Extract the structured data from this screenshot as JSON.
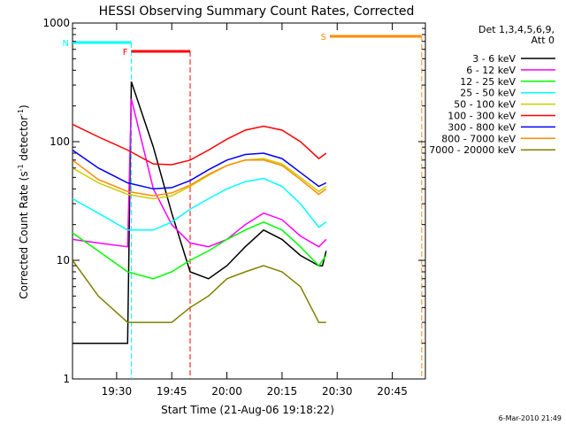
{
  "chart_data": {
    "type": "line",
    "title": "HESSI Observing Summary Count Rates, Corrected",
    "xlabel": "Start Time (21-Aug-06 19:18:22)",
    "ylabel": "Corrected Count Rate (s⁻¹ detector⁻¹)",
    "ylabel_parts": [
      "Corrected Count Rate (s",
      "-1",
      " detector",
      "-1",
      ")"
    ],
    "yscale": "log",
    "ylim": [
      1,
      1000
    ],
    "xlim_minutes": [
      19.3,
      20.9
    ],
    "x_ticks": [
      "19:30",
      "19:45",
      "20:00",
      "20:15",
      "20:30",
      "20:45"
    ],
    "y_ticks": [
      "1",
      "10",
      "100",
      "1000"
    ],
    "legend_title": [
      "Det 1,3,4,5,6,9,",
      "Att 0"
    ],
    "series": [
      {
        "name": "3 - 6 keV",
        "color": "#000000",
        "x": [
          "19:18",
          "19:33",
          "19:34",
          "19:40",
          "19:45",
          "19:50",
          "19:55",
          "20:00",
          "20:05",
          "20:10",
          "20:15",
          "20:20",
          "20:25",
          "20:26",
          "20:27"
        ],
        "y": [
          2.0,
          2.0,
          320,
          90,
          25,
          8,
          7,
          9,
          13,
          18,
          15,
          11,
          9,
          9,
          12
        ]
      },
      {
        "name": "6 - 12 keV",
        "color": "#ff00ff",
        "x": [
          "19:18",
          "19:25",
          "19:33",
          "19:34",
          "19:40",
          "19:45",
          "19:50",
          "19:55",
          "20:00",
          "20:05",
          "20:10",
          "20:15",
          "20:20",
          "20:25",
          "20:27"
        ],
        "y": [
          15,
          14,
          13,
          230,
          40,
          20,
          14,
          13,
          15,
          20,
          25,
          22,
          16,
          13,
          15
        ]
      },
      {
        "name": "12 - 25 keV",
        "color": "#00ff00",
        "x": [
          "19:18",
          "19:25",
          "19:33",
          "19:40",
          "19:45",
          "19:50",
          "19:55",
          "20:00",
          "20:05",
          "20:10",
          "20:15",
          "20:20",
          "20:25",
          "20:27"
        ],
        "y": [
          17,
          12,
          8,
          7,
          8,
          10,
          12,
          15,
          18,
          21,
          18,
          13,
          9,
          11
        ]
      },
      {
        "name": "25 - 50 keV",
        "color": "#00ffff",
        "x": [
          "19:18",
          "19:25",
          "19:33",
          "19:40",
          "19:45",
          "19:50",
          "19:55",
          "20:00",
          "20:05",
          "20:10",
          "20:15",
          "20:20",
          "20:25",
          "20:27"
        ],
        "y": [
          33,
          25,
          18,
          18,
          21,
          27,
          33,
          40,
          46,
          49,
          42,
          30,
          19,
          21
        ]
      },
      {
        "name": "50 - 100 keV",
        "color": "#cccc00",
        "x": [
          "19:18",
          "19:25",
          "19:33",
          "19:40",
          "19:45",
          "19:50",
          "19:55",
          "20:00",
          "20:05",
          "20:10",
          "20:15",
          "20:20",
          "20:25",
          "20:27"
        ],
        "y": [
          60,
          45,
          36,
          33,
          35,
          42,
          52,
          63,
          70,
          72,
          65,
          50,
          38,
          42
        ]
      },
      {
        "name": "100 - 300 keV",
        "color": "#ff0000",
        "x": [
          "19:18",
          "19:25",
          "19:33",
          "19:40",
          "19:45",
          "19:50",
          "19:55",
          "20:00",
          "20:05",
          "20:10",
          "20:15",
          "20:20",
          "20:25",
          "20:27"
        ],
        "y": [
          140,
          110,
          85,
          65,
          64,
          70,
          85,
          105,
          125,
          135,
          125,
          100,
          72,
          80
        ]
      },
      {
        "name": "300 - 800 keV",
        "color": "#0000ff",
        "x": [
          "19:18",
          "19:25",
          "19:33",
          "19:40",
          "19:45",
          "19:50",
          "19:55",
          "20:00",
          "20:05",
          "20:10",
          "20:15",
          "20:20",
          "20:25",
          "20:27"
        ],
        "y": [
          85,
          60,
          45,
          40,
          41,
          47,
          58,
          70,
          78,
          80,
          72,
          55,
          42,
          45
        ]
      },
      {
        "name": "800 - 7000 keV",
        "color": "#ff8c00",
        "x": [
          "19:18",
          "19:25",
          "19:33",
          "19:40",
          "19:45",
          "19:50",
          "19:55",
          "20:00",
          "20:05",
          "20:10",
          "20:15",
          "20:20",
          "20:25",
          "20:27"
        ],
        "y": [
          70,
          48,
          38,
          35,
          37,
          43,
          53,
          63,
          70,
          70,
          63,
          48,
          36,
          40
        ]
      },
      {
        "name": "7000 - 20000 keV",
        "color": "#808000",
        "x": [
          "19:18",
          "19:25",
          "19:33",
          "19:40",
          "19:45",
          "19:50",
          "19:55",
          "20:00",
          "20:05",
          "20:10",
          "20:15",
          "20:20",
          "20:25",
          "20:27"
        ],
        "y": [
          10,
          5,
          3,
          3,
          3,
          4,
          5,
          7,
          8,
          9,
          8,
          6,
          3,
          3
        ]
      }
    ],
    "flags": [
      {
        "label": "N",
        "color": "#00ffff",
        "start": "19:18",
        "end": "19:34"
      },
      {
        "label": "F",
        "color": "#ff0000",
        "start": "19:34",
        "end": "19:50"
      },
      {
        "label": "S",
        "color": "#ff8c00",
        "start": "20:28",
        "end": "20:53"
      }
    ],
    "footer_text": "6-Mar-2010 21:49",
    "grid": false,
    "legend_position": "right"
  }
}
